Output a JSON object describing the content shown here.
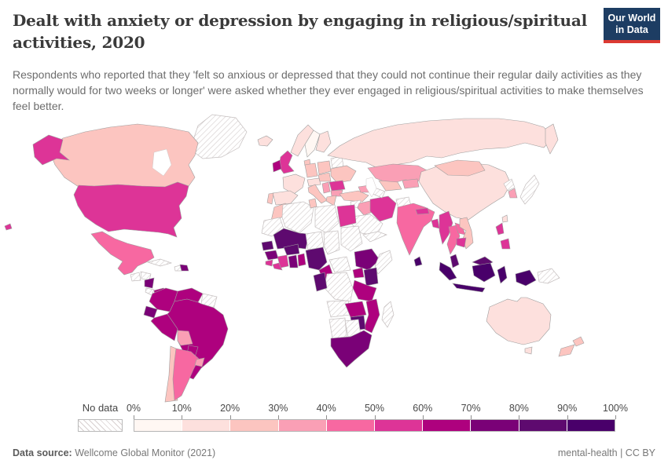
{
  "header": {
    "title": "Dealt with anxiety or depression by engaging in religious/spiritual activities, 2020",
    "subtitle": "Respondents who reported that they 'felt so anxious or depressed that they could not continue their regular daily activities as they normally would for two weeks or longer' were asked whether they ever engaged in religious/spiritual activities to make themselves feel better.",
    "logo": {
      "line1": "Our World",
      "line2": "in Data",
      "bg_color": "#1d3d63",
      "accent_color": "#dc3a32"
    }
  },
  "legend": {
    "no_data_label": "No data",
    "tick_labels": [
      "0%",
      "10%",
      "20%",
      "30%",
      "40%",
      "50%",
      "60%",
      "70%",
      "80%",
      "90%",
      "100%"
    ],
    "bin_colors": [
      "#fff7f3",
      "#fde0dd",
      "#fcc5c0",
      "#fa9fb5",
      "#f768a1",
      "#dd3497",
      "#ae017e",
      "#7a0177",
      "#5e0a6f",
      "#49006a"
    ]
  },
  "footer": {
    "source_label": "Data source:",
    "source_value": " Wellcome Global Monitor (2021)",
    "right_text": "mental-health | CC BY"
  },
  "chart_data": {
    "type": "choropleth",
    "title": "Dealt with anxiety or depression by engaging in religious/spiritual activities",
    "year": 2020,
    "unit": "%",
    "legend_position": "bottom",
    "bin_fill": {
      "0-10%": "#fff7f3",
      "10-20%": "#fde0dd",
      "20-30%": "#fcc5c0",
      "30-40%": "#fa9fb5",
      "40-50%": "#f768a1",
      "50-60%": "#dd3497",
      "60-70%": "#ae017e",
      "70-80%": "#7a0177",
      "80-90%": "#5e0a6f",
      "90-100%": "#49006a",
      "no-data": "hatch"
    },
    "countries": {
      "greenland": {
        "label": "Greenland",
        "bin": "no-data"
      },
      "canada": {
        "label": "Canada",
        "bin": "20-30%"
      },
      "alaska": {
        "label": "United States (Alaska)",
        "bin": "50-60%"
      },
      "usa": {
        "label": "United States",
        "bin": "50-60%"
      },
      "hawaii": {
        "label": "United States (Hawaii)",
        "bin": "50-60%"
      },
      "mexico": {
        "label": "Mexico",
        "bin": "40-50%"
      },
      "guatemala": {
        "label": "Guatemala",
        "bin": "no-data"
      },
      "honduras": {
        "label": "Honduras",
        "bin": "no-data"
      },
      "nicaragua": {
        "label": "Nicaragua",
        "bin": "70-80%"
      },
      "costa-rica": {
        "label": "Costa Rica",
        "bin": "no-data"
      },
      "panama": {
        "label": "Panama",
        "bin": "60-70%"
      },
      "cuba": {
        "label": "Cuba",
        "bin": "no-data"
      },
      "haiti": {
        "label": "Haiti",
        "bin": "no-data"
      },
      "dominican-republic": {
        "label": "Dominican Republic",
        "bin": "70-80%"
      },
      "colombia": {
        "label": "Colombia",
        "bin": "60-70%"
      },
      "venezuela": {
        "label": "Venezuela",
        "bin": "60-70%"
      },
      "guyana-suriname": {
        "label": "Guyana / Suriname",
        "bin": "no-data"
      },
      "ecuador": {
        "label": "Ecuador",
        "bin": "70-80%"
      },
      "peru": {
        "label": "Peru",
        "bin": "60-70%"
      },
      "brazil": {
        "label": "Brazil",
        "bin": "60-70%"
      },
      "bolivia": {
        "label": "Bolivia",
        "bin": "30-40%"
      },
      "paraguay": {
        "label": "Paraguay",
        "bin": "60-70%"
      },
      "chile": {
        "label": "Chile",
        "bin": "20-30%"
      },
      "argentina": {
        "label": "Argentina",
        "bin": "40-50%"
      },
      "uruguay": {
        "label": "Uruguay",
        "bin": "30-40%"
      },
      "iceland": {
        "label": "Iceland",
        "bin": "10-20%"
      },
      "norway": {
        "label": "Norway",
        "bin": "10-20%"
      },
      "sweden": {
        "label": "Sweden",
        "bin": "0-10%"
      },
      "finland": {
        "label": "Finland",
        "bin": "10-20%"
      },
      "denmark": {
        "label": "Denmark",
        "bin": "20-30%"
      },
      "uk": {
        "label": "United Kingdom",
        "bin": "50-60%"
      },
      "ireland": {
        "label": "Ireland",
        "bin": "60-70%"
      },
      "france": {
        "label": "France",
        "bin": "10-20%"
      },
      "spain": {
        "label": "Spain",
        "bin": "10-20%"
      },
      "portugal": {
        "label": "Portugal",
        "bin": "20-30%"
      },
      "germany": {
        "label": "Germany",
        "bin": "20-30%"
      },
      "italy": {
        "label": "Italy",
        "bin": "20-30%"
      },
      "switzerland-austria": {
        "label": "Switzerland / Austria",
        "bin": "10-20%"
      },
      "poland": {
        "label": "Poland",
        "bin": "20-30%"
      },
      "czechia-hungary": {
        "label": "Czechia / Hungary",
        "bin": "20-30%"
      },
      "belarus": {
        "label": "Belarus",
        "bin": "no-data"
      },
      "ukraine": {
        "label": "Ukraine",
        "bin": "20-30%"
      },
      "romania": {
        "label": "Romania",
        "bin": "50-60%"
      },
      "serbia": {
        "label": "Serbia",
        "bin": "30-40%"
      },
      "bulgaria": {
        "label": "Bulgaria",
        "bin": "30-40%"
      },
      "greece": {
        "label": "Greece",
        "bin": "20-30%"
      },
      "russia": {
        "label": "Russia",
        "bin": "10-20%"
      },
      "turkey": {
        "label": "Turkey",
        "bin": "20-30%"
      },
      "caucasus": {
        "label": "Georgia / Azerbaijan",
        "bin": "30-40%"
      },
      "syria": {
        "label": "Syria",
        "bin": "no-data"
      },
      "israel-jordan": {
        "label": "Israel / Jordan",
        "bin": "50-60%"
      },
      "iraq": {
        "label": "Iraq",
        "bin": "30-40%"
      },
      "iran": {
        "label": "Iran",
        "bin": "50-60%"
      },
      "saudi-arabia": {
        "label": "Saudi Arabia",
        "bin": "no-data"
      },
      "yemen-oman": {
        "label": "Yemen / Oman",
        "bin": "no-data"
      },
      "afghanistan": {
        "label": "Afghanistan",
        "bin": "no-data"
      },
      "pakistan": {
        "label": "Pakistan",
        "bin": "no-data"
      },
      "kazakhstan": {
        "label": "Kazakhstan",
        "bin": "30-40%"
      },
      "uzbekistan": {
        "label": "Uzbekistan",
        "bin": "20-30%"
      },
      "turkmenistan": {
        "label": "Turkmenistan",
        "bin": "no-data"
      },
      "kyrgyzstan-tajikistan": {
        "label": "Kyrgyzstan / Tajikistan",
        "bin": "30-40%"
      },
      "china": {
        "label": "China",
        "bin": "10-20%"
      },
      "mongolia": {
        "label": "Mongolia",
        "bin": "20-30%"
      },
      "north-korea": {
        "label": "North Korea",
        "bin": "no-data"
      },
      "south-korea": {
        "label": "South Korea",
        "bin": "30-40%"
      },
      "japan": {
        "label": "Japan",
        "bin": "no-data"
      },
      "taiwan": {
        "label": "Taiwan",
        "bin": "10-20%"
      },
      "india": {
        "label": "India",
        "bin": "40-50%"
      },
      "nepal": {
        "label": "Nepal",
        "bin": "50-60%"
      },
      "bangladesh": {
        "label": "Bangladesh",
        "bin": "50-60%"
      },
      "sri-lanka": {
        "label": "Sri Lanka",
        "bin": "90-100%"
      },
      "myanmar": {
        "label": "Myanmar",
        "bin": "50-60%"
      },
      "thailand": {
        "label": "Thailand",
        "bin": "40-50%"
      },
      "laos": {
        "label": "Laos",
        "bin": "40-50%"
      },
      "vietnam": {
        "label": "Vietnam",
        "bin": "20-30%"
      },
      "cambodia": {
        "label": "Cambodia",
        "bin": "50-60%"
      },
      "malaysia": {
        "label": "Malaysia",
        "bin": "80-90%"
      },
      "indonesia": {
        "label": "Indonesia",
        "bin": "90-100%"
      },
      "philippines": {
        "label": "Philippines",
        "bin": "50-60%"
      },
      "papua-new-guinea": {
        "label": "Papua New Guinea",
        "bin": "no-data"
      },
      "morocco": {
        "label": "Morocco",
        "bin": "20-30%"
      },
      "algeria": {
        "label": "Algeria",
        "bin": "no-data"
      },
      "tunisia": {
        "label": "Tunisia",
        "bin": "20-30%"
      },
      "libya": {
        "label": "Libya",
        "bin": "no-data"
      },
      "egypt": {
        "label": "Egypt",
        "bin": "50-60%"
      },
      "western-sahara-mauritania": {
        "label": "Mauritania / Western Sahara",
        "bin": "no-data"
      },
      "mali": {
        "label": "Mali",
        "bin": "80-90%"
      },
      "niger": {
        "label": "Niger",
        "bin": "no-data"
      },
      "chad": {
        "label": "Chad",
        "bin": "no-data"
      },
      "sudan": {
        "label": "Sudan",
        "bin": "no-data"
      },
      "senegal": {
        "label": "Senegal",
        "bin": "80-90%"
      },
      "guinea": {
        "label": "Guinea",
        "bin": "70-80%"
      },
      "sierra-leone": {
        "label": "Sierra Leone",
        "bin": "50-60%"
      },
      "liberia": {
        "label": "Liberia",
        "bin": "50-60%"
      },
      "ivory-coast": {
        "label": "Cote d'Ivoire",
        "bin": "50-60%"
      },
      "ghana": {
        "label": "Ghana",
        "bin": "70-80%"
      },
      "togo-benin": {
        "label": "Togo / Benin",
        "bin": "60-70%"
      },
      "burkina-faso": {
        "label": "Burkina Faso",
        "bin": "80-90%"
      },
      "nigeria": {
        "label": "Nigeria",
        "bin": "80-90%"
      },
      "cameroon": {
        "label": "Cameroon",
        "bin": "60-70%"
      },
      "central-african-republic": {
        "label": "Central African Republic",
        "bin": "no-data"
      },
      "ethiopia": {
        "label": "Ethiopia",
        "bin": "70-80%"
      },
      "somalia": {
        "label": "Somalia",
        "bin": "no-data"
      },
      "uganda": {
        "label": "Uganda",
        "bin": "60-70%"
      },
      "kenya": {
        "label": "Kenya",
        "bin": "80-90%"
      },
      "tanzania": {
        "label": "Tanzania",
        "bin": "60-70%"
      },
      "drc": {
        "label": "Democratic Republic of Congo",
        "bin": "no-data"
      },
      "gabon-congo": {
        "label": "Gabon / Congo",
        "bin": "80-90%"
      },
      "angola": {
        "label": "Angola",
        "bin": "no-data"
      },
      "zambia": {
        "label": "Zambia",
        "bin": "60-70%"
      },
      "malawi-mozambique": {
        "label": "Malawi / Mozambique",
        "bin": "60-70%"
      },
      "zimbabwe": {
        "label": "Zimbabwe",
        "bin": "80-90%"
      },
      "namibia": {
        "label": "Namibia",
        "bin": "no-data"
      },
      "botswana": {
        "label": "Botswana",
        "bin": "no-data"
      },
      "south-africa": {
        "label": "South Africa",
        "bin": "70-80%"
      },
      "madagascar": {
        "label": "Madagascar",
        "bin": "no-data"
      },
      "australia": {
        "label": "Australia",
        "bin": "10-20%"
      },
      "new-zealand": {
        "label": "New Zealand",
        "bin": "20-30%"
      }
    }
  }
}
